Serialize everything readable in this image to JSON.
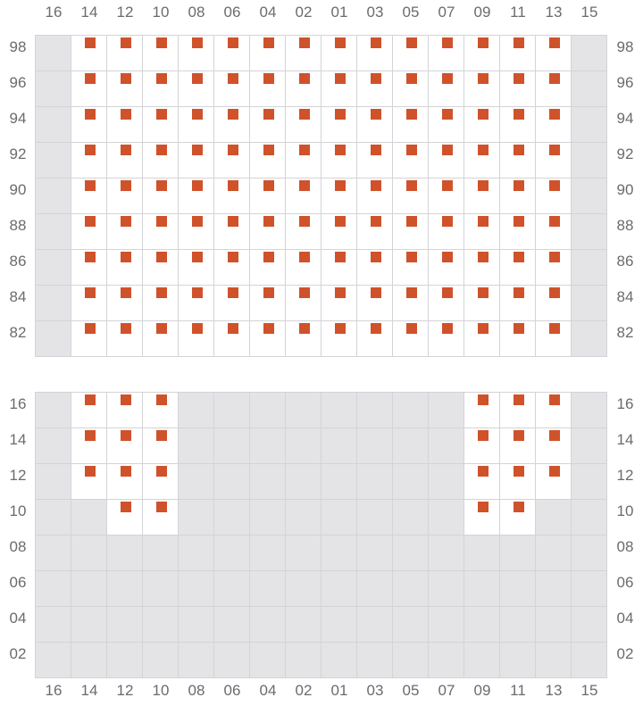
{
  "columns": [
    "16",
    "14",
    "12",
    "10",
    "08",
    "06",
    "04",
    "02",
    "01",
    "03",
    "05",
    "07",
    "09",
    "11",
    "13",
    "15"
  ],
  "colors": {
    "marker": "#cf522b",
    "unavailable": "#e4e4e7",
    "available": "#ffffff",
    "grid": "#d4d4d8",
    "label": "#6b6b70"
  },
  "sections": [
    {
      "rows": [
        {
          "label": "98",
          "available": [
            "14",
            "12",
            "10",
            "08",
            "06",
            "04",
            "02",
            "01",
            "03",
            "05",
            "07",
            "09",
            "11",
            "13"
          ]
        },
        {
          "label": "96",
          "available": [
            "14",
            "12",
            "10",
            "08",
            "06",
            "04",
            "02",
            "01",
            "03",
            "05",
            "07",
            "09",
            "11",
            "13"
          ]
        },
        {
          "label": "94",
          "available": [
            "14",
            "12",
            "10",
            "08",
            "06",
            "04",
            "02",
            "01",
            "03",
            "05",
            "07",
            "09",
            "11",
            "13"
          ]
        },
        {
          "label": "92",
          "available": [
            "14",
            "12",
            "10",
            "08",
            "06",
            "04",
            "02",
            "01",
            "03",
            "05",
            "07",
            "09",
            "11",
            "13"
          ]
        },
        {
          "label": "90",
          "available": [
            "14",
            "12",
            "10",
            "08",
            "06",
            "04",
            "02",
            "01",
            "03",
            "05",
            "07",
            "09",
            "11",
            "13"
          ]
        },
        {
          "label": "88",
          "available": [
            "14",
            "12",
            "10",
            "08",
            "06",
            "04",
            "02",
            "01",
            "03",
            "05",
            "07",
            "09",
            "11",
            "13"
          ]
        },
        {
          "label": "86",
          "available": [
            "14",
            "12",
            "10",
            "08",
            "06",
            "04",
            "02",
            "01",
            "03",
            "05",
            "07",
            "09",
            "11",
            "13"
          ]
        },
        {
          "label": "84",
          "available": [
            "14",
            "12",
            "10",
            "08",
            "06",
            "04",
            "02",
            "01",
            "03",
            "05",
            "07",
            "09",
            "11",
            "13"
          ]
        },
        {
          "label": "82",
          "available": [
            "14",
            "12",
            "10",
            "08",
            "06",
            "04",
            "02",
            "01",
            "03",
            "05",
            "07",
            "09",
            "11",
            "13"
          ]
        }
      ]
    },
    {
      "rows": [
        {
          "label": "16",
          "available": [
            "14",
            "12",
            "10",
            "09",
            "11",
            "13"
          ]
        },
        {
          "label": "14",
          "available": [
            "14",
            "12",
            "10",
            "09",
            "11",
            "13"
          ]
        },
        {
          "label": "12",
          "available": [
            "14",
            "12",
            "10",
            "09",
            "11",
            "13"
          ]
        },
        {
          "label": "10",
          "available": [
            "12",
            "10",
            "09",
            "11"
          ]
        },
        {
          "label": "08",
          "available": []
        },
        {
          "label": "06",
          "available": []
        },
        {
          "label": "04",
          "available": []
        },
        {
          "label": "02",
          "available": []
        }
      ]
    }
  ]
}
